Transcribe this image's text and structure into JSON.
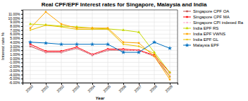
{
  "chart_data": {
    "type": "line",
    "title": "Real CPF/EPF Interest rates for Singapore, Malaysia and India",
    "x_label": "Year",
    "y_label": "Interest rate %",
    "x": [
      2000,
      2001,
      2002,
      2003,
      2004,
      2005,
      2006,
      2007,
      2008,
      2009
    ],
    "series": [
      {
        "name": "Singapore CPF OA",
        "color": "#c0504d",
        "marker": "square",
        "line_style": "solid",
        "values": [
          3.0,
          1.5,
          1.5,
          2.5,
          0.8,
          2.0,
          2.0,
          2.0,
          0.5,
          -4.5
        ]
      },
      {
        "name": "Singapore CPF MA",
        "color": "#ff0000",
        "marker": "square",
        "line_style": "solid",
        "values": [
          3.5,
          1.8,
          1.8,
          2.8,
          1.0,
          2.3,
          2.3,
          2.0,
          0.8,
          -3.5
        ]
      },
      {
        "name": "Singapore CPI indexed Ra",
        "color": "#ffaacc",
        "marker": "point",
        "line_style": "dashed",
        "values": [
          3.2,
          1.6,
          1.6,
          2.6,
          0.9,
          2.1,
          2.1,
          1.9,
          0.6,
          -4.0
        ]
      },
      {
        "name": "India EPF RS",
        "color": "#c6d900",
        "marker": "triangle",
        "line_style": "solid",
        "values": [
          8.5,
          8.3,
          8.0,
          7.8,
          7.5,
          7.3,
          7.0,
          6.5,
          1.5,
          -3.5
        ]
      },
      {
        "name": "India EPF VWNS",
        "color": "#ffa500",
        "marker": "square",
        "line_style": "solid",
        "values": [
          7.5,
          11.5,
          8.5,
          7.5,
          7.5,
          7.5,
          4.0,
          3.8,
          0.5,
          -5.2
        ]
      },
      {
        "name": "India EPF GL",
        "color": "#e8c000",
        "marker": "point",
        "line_style": "solid",
        "values": [
          7.0,
          8.2,
          7.8,
          7.2,
          7.2,
          7.2,
          3.5,
          3.0,
          1.2,
          -4.5
        ]
      },
      {
        "name": "Malaysia EPF",
        "color": "#0070c0",
        "marker": "star",
        "line_style": "solid",
        "values": [
          4.0,
          3.8,
          3.5,
          3.5,
          3.5,
          3.5,
          1.5,
          1.5,
          4.0,
          2.5
        ]
      }
    ],
    "xlim": [
      1999.5,
      2009.5
    ],
    "xticks": [
      2000,
      2001,
      2002,
      2003,
      2004,
      2005,
      2006,
      2007,
      2008,
      2009
    ],
    "ylim": [
      -6.0,
      12.0
    ],
    "yticks": [
      {
        "value": 11.0,
        "label": "11.00%"
      },
      {
        "value": 10.0,
        "label": "10.00%"
      },
      {
        "value": 9.0,
        "label": "9.00%"
      },
      {
        "value": 8.0,
        "label": "8.00%"
      },
      {
        "value": 7.0,
        "label": "7.00%"
      },
      {
        "value": 6.0,
        "label": "6.00%"
      },
      {
        "value": 5.0,
        "label": "5.00%"
      },
      {
        "value": 4.0,
        "label": "4.00%"
      },
      {
        "value": 3.0,
        "label": "3.00%"
      },
      {
        "value": 2.0,
        "label": "2.00%"
      },
      {
        "value": 1.0,
        "label": "1.00%"
      },
      {
        "value": 0.0,
        "label": "0.00%"
      },
      {
        "value": -1.0,
        "label": "-1.00%"
      },
      {
        "value": -2.0,
        "label": "-2.00%"
      },
      {
        "value": -3.0,
        "label": "-3.00%"
      },
      {
        "value": -4.0,
        "label": "-4.00%"
      },
      {
        "value": -5.0,
        "label": "-5.00%"
      },
      {
        "value": -6.0,
        "label": "-6.00%"
      }
    ],
    "grid": true,
    "legend": "right"
  }
}
